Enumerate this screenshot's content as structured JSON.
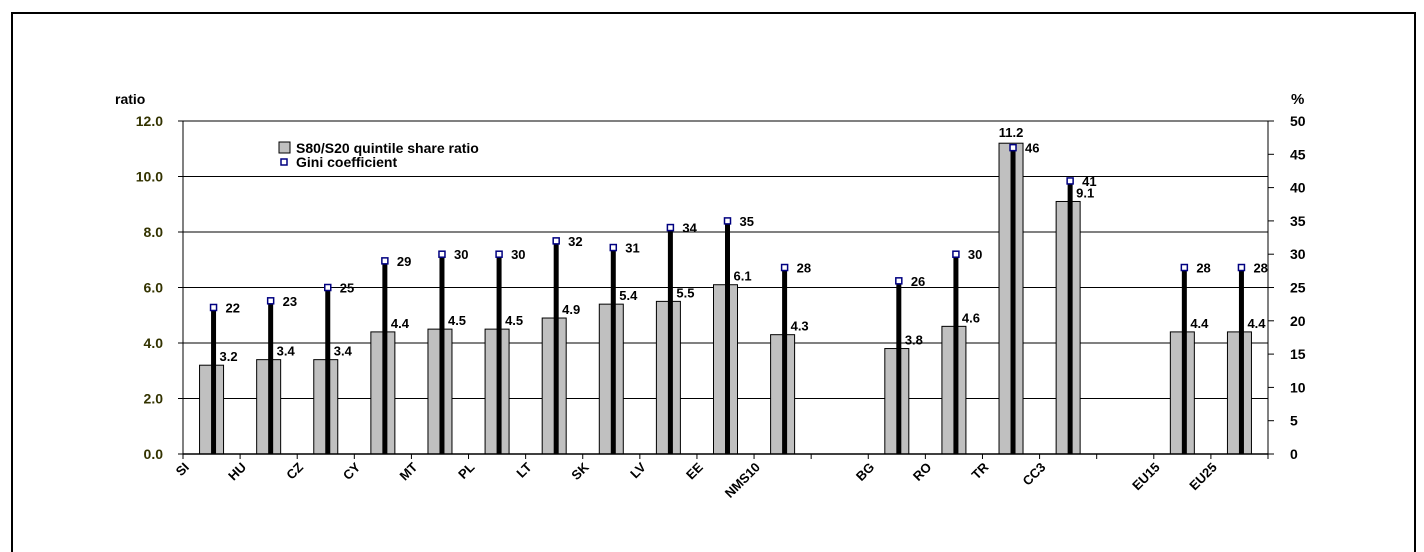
{
  "chart_data": {
    "type": "bar",
    "left_axis": {
      "label": "ratio",
      "ylim": [
        0,
        12
      ],
      "ticks": [
        "0.0",
        "2.0",
        "4.0",
        "6.0",
        "8.0",
        "10.0",
        "12.0"
      ]
    },
    "right_axis": {
      "label": "%",
      "ylim": [
        0,
        50
      ],
      "ticks": [
        "0",
        "5",
        "10",
        "15",
        "20",
        "25",
        "30",
        "35",
        "40",
        "45",
        "50"
      ]
    },
    "categories": [
      "SI",
      "HU",
      "CZ",
      "CY",
      "MT",
      "PL",
      "LT",
      "SK",
      "LV",
      "EE",
      "NMS10",
      "",
      "BG",
      "RO",
      "TR",
      "CC3",
      "",
      "EU15",
      "EU25"
    ],
    "series": [
      {
        "name": "S80/S20 quintile share ratio",
        "axis": "left",
        "values": [
          3.2,
          3.4,
          3.4,
          4.4,
          4.5,
          4.5,
          4.9,
          5.4,
          5.5,
          6.1,
          4.3,
          null,
          3.8,
          4.6,
          11.2,
          9.1,
          null,
          4.4,
          4.4
        ],
        "labels": [
          "3.2",
          "3.4",
          "3.4",
          "4.4",
          "4.5",
          "4.5",
          "4.9",
          "5.4",
          "5.5",
          "6.1",
          "4.3",
          "",
          "3.8",
          "4.6",
          "11.2",
          "9.1",
          "",
          "4.4",
          "4.4"
        ]
      },
      {
        "name": "Gini coefficient",
        "axis": "right",
        "values": [
          22,
          23,
          25,
          29,
          30,
          30,
          32,
          31,
          34,
          35,
          28,
          null,
          26,
          30,
          46,
          41,
          null,
          28,
          28
        ],
        "labels": [
          "22",
          "23",
          "25",
          "29",
          "30",
          "30",
          "32",
          "31",
          "34",
          "35",
          "28",
          "",
          "26",
          "30",
          "46",
          "41",
          "",
          "28",
          "28"
        ]
      }
    ],
    "colors": {
      "bar_fill": "#c0c0c0",
      "bar_stroke": "#000000",
      "gini_line": "#000000",
      "gini_marker": "#000080",
      "axis_text_left": "#333300",
      "text": "#000000"
    },
    "grid": "horizontal",
    "legend_placement": "top-left"
  }
}
